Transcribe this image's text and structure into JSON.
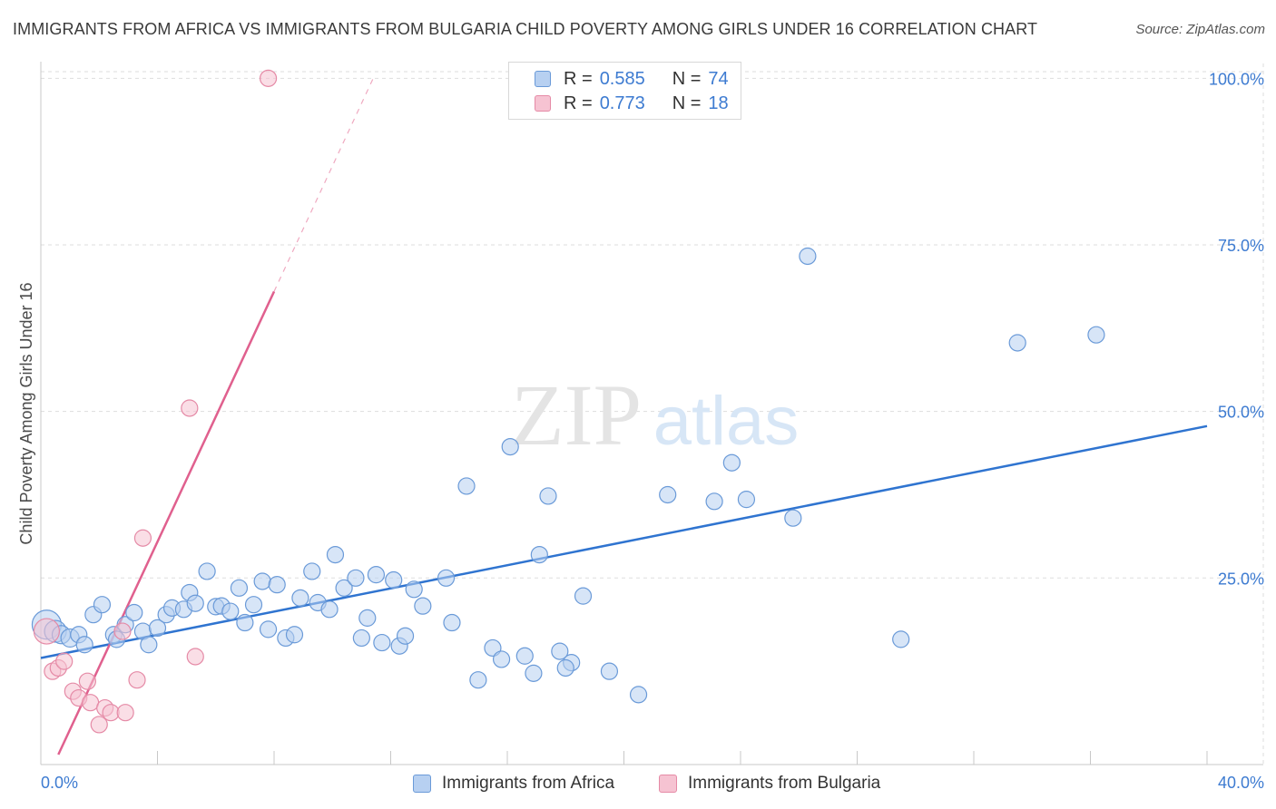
{
  "title": "IMMIGRANTS FROM AFRICA VS IMMIGRANTS FROM BULGARIA CHILD POVERTY AMONG GIRLS UNDER 16 CORRELATION CHART",
  "source": "Source: ZipAtlas.com",
  "watermark": {
    "zip": "ZIP",
    "atlas": "atlas"
  },
  "legend": {
    "africa": {
      "r_label": "R =",
      "r_value": "0.585",
      "n_label": "N =",
      "n_value": "74"
    },
    "bulgaria": {
      "r_label": "R =",
      "r_value": "0.773",
      "n_label": "N =",
      "n_value": "18"
    }
  },
  "colors": {
    "africa_fill": "#b7d0f1",
    "africa_stroke": "#6a9ad8",
    "africa_line": "#2f74d0",
    "bulgaria_fill": "#f6c3d2",
    "bulgaria_stroke": "#e58aa6",
    "bulgaria_line": "#e0608e",
    "grid": "#dddddd",
    "tick_text": "#3d7bd1"
  },
  "chart_data": {
    "type": "scatter",
    "title": "IMMIGRANTS FROM AFRICA VS IMMIGRANTS FROM BULGARIA CHILD POVERTY AMONG GIRLS UNDER 16 CORRELATION CHART",
    "xlabel": "",
    "ylabel": "Child Poverty Among Girls Under 16",
    "xlim": [
      0,
      40
    ],
    "ylim": [
      -3,
      101
    ],
    "x_tick_labels": [
      "0.0%",
      "40.0%"
    ],
    "y_ticks": [
      25,
      50,
      75,
      100
    ],
    "y_tick_labels": [
      "25.0%",
      "50.0%",
      "75.0%",
      "100.0%"
    ],
    "grid": true,
    "legend_position": "top-center",
    "series": [
      {
        "name": "Immigrants from Africa",
        "points": [
          [
            0.2,
            18.0,
            16
          ],
          [
            0.5,
            17.0,
            12
          ],
          [
            0.7,
            16.5,
            10
          ],
          [
            1.0,
            16.0,
            10
          ],
          [
            1.3,
            16.5,
            9
          ],
          [
            1.5,
            15.0,
            9
          ],
          [
            1.8,
            19.5,
            9
          ],
          [
            2.1,
            21.0,
            9
          ],
          [
            2.5,
            16.5,
            9
          ],
          [
            2.6,
            15.8,
            9
          ],
          [
            2.9,
            18.0,
            9
          ],
          [
            3.2,
            19.8,
            9
          ],
          [
            3.5,
            17.0,
            9
          ],
          [
            3.7,
            15.0,
            9
          ],
          [
            4.0,
            17.5,
            9
          ],
          [
            4.3,
            19.5,
            9
          ],
          [
            4.5,
            20.5,
            9
          ],
          [
            4.9,
            20.3,
            9
          ],
          [
            5.1,
            22.8,
            9
          ],
          [
            5.3,
            21.2,
            9
          ],
          [
            5.7,
            26.0,
            9
          ],
          [
            6.0,
            20.7,
            9
          ],
          [
            6.2,
            20.8,
            9
          ],
          [
            6.5,
            20.0,
            9
          ],
          [
            6.8,
            23.5,
            9
          ],
          [
            7.0,
            18.3,
            9
          ],
          [
            7.3,
            21.0,
            9
          ],
          [
            7.6,
            24.5,
            9
          ],
          [
            7.8,
            17.3,
            9
          ],
          [
            8.1,
            24.0,
            9
          ],
          [
            8.4,
            16.0,
            9
          ],
          [
            8.7,
            16.5,
            9
          ],
          [
            8.9,
            22.0,
            9
          ],
          [
            9.3,
            26.0,
            9
          ],
          [
            9.5,
            21.3,
            9
          ],
          [
            9.9,
            20.3,
            9
          ],
          [
            10.1,
            28.5,
            9
          ],
          [
            10.4,
            23.5,
            9
          ],
          [
            10.8,
            25.0,
            9
          ],
          [
            11.0,
            16.0,
            9
          ],
          [
            11.2,
            19.0,
            9
          ],
          [
            11.5,
            25.5,
            9
          ],
          [
            11.7,
            15.3,
            9
          ],
          [
            12.1,
            24.7,
            9
          ],
          [
            12.3,
            14.8,
            9
          ],
          [
            12.5,
            16.3,
            9
          ],
          [
            12.8,
            23.3,
            9
          ],
          [
            13.1,
            20.8,
            9
          ],
          [
            13.9,
            25.0,
            9
          ],
          [
            14.1,
            18.3,
            9
          ],
          [
            14.6,
            38.8,
            9
          ],
          [
            15.0,
            9.7,
            9
          ],
          [
            15.5,
            14.5,
            9
          ],
          [
            15.8,
            12.8,
            9
          ],
          [
            16.1,
            44.7,
            9
          ],
          [
            16.6,
            13.3,
            9
          ],
          [
            16.9,
            10.7,
            9
          ],
          [
            17.1,
            28.5,
            9
          ],
          [
            17.4,
            37.3,
            9
          ],
          [
            17.8,
            14.0,
            9
          ],
          [
            18.2,
            12.3,
            9
          ],
          [
            18.0,
            11.5,
            9
          ],
          [
            18.6,
            22.3,
            9
          ],
          [
            19.5,
            11.0,
            9
          ],
          [
            20.5,
            7.5,
            9
          ],
          [
            21.5,
            37.5,
            9
          ],
          [
            23.1,
            36.5,
            9
          ],
          [
            23.7,
            42.3,
            9
          ],
          [
            24.2,
            36.8,
            9
          ],
          [
            25.8,
            34.0,
            9
          ],
          [
            26.3,
            73.3,
            9
          ],
          [
            29.5,
            15.8,
            9
          ],
          [
            33.5,
            60.3,
            9
          ],
          [
            36.2,
            61.5,
            9
          ]
        ]
      },
      {
        "name": "Immigrants from Bulgaria",
        "points": [
          [
            0.2,
            17.0,
            14
          ],
          [
            0.4,
            11.0,
            9
          ],
          [
            0.6,
            11.5,
            9
          ],
          [
            0.8,
            12.5,
            9
          ],
          [
            1.1,
            8.0,
            9
          ],
          [
            1.3,
            7.0,
            9
          ],
          [
            1.6,
            9.5,
            9
          ],
          [
            1.7,
            6.3,
            9
          ],
          [
            2.0,
            3.0,
            9
          ],
          [
            2.2,
            5.5,
            9
          ],
          [
            2.4,
            4.8,
            9
          ],
          [
            2.8,
            17.0,
            9
          ],
          [
            2.9,
            4.8,
            9
          ],
          [
            3.3,
            9.7,
            9
          ],
          [
            3.5,
            31.0,
            9
          ],
          [
            5.1,
            50.5,
            9
          ],
          [
            5.3,
            13.2,
            9
          ],
          [
            7.8,
            100.0,
            9
          ]
        ]
      }
    ],
    "trend_lines": [
      {
        "series": "Immigrants from Africa",
        "x": [
          0,
          40
        ],
        "y": [
          13.0,
          47.8
        ]
      },
      {
        "series": "Immigrants from Bulgaria",
        "x": [
          0.6,
          8.0
        ],
        "y": [
          -1.5,
          68.0
        ],
        "extension_x": [
          8.0,
          11.4
        ],
        "extension_y": [
          68.0,
          100.0
        ]
      }
    ]
  },
  "bottom_legend": {
    "africa": "Immigrants from Africa",
    "bulgaria": "Immigrants from Bulgaria"
  }
}
